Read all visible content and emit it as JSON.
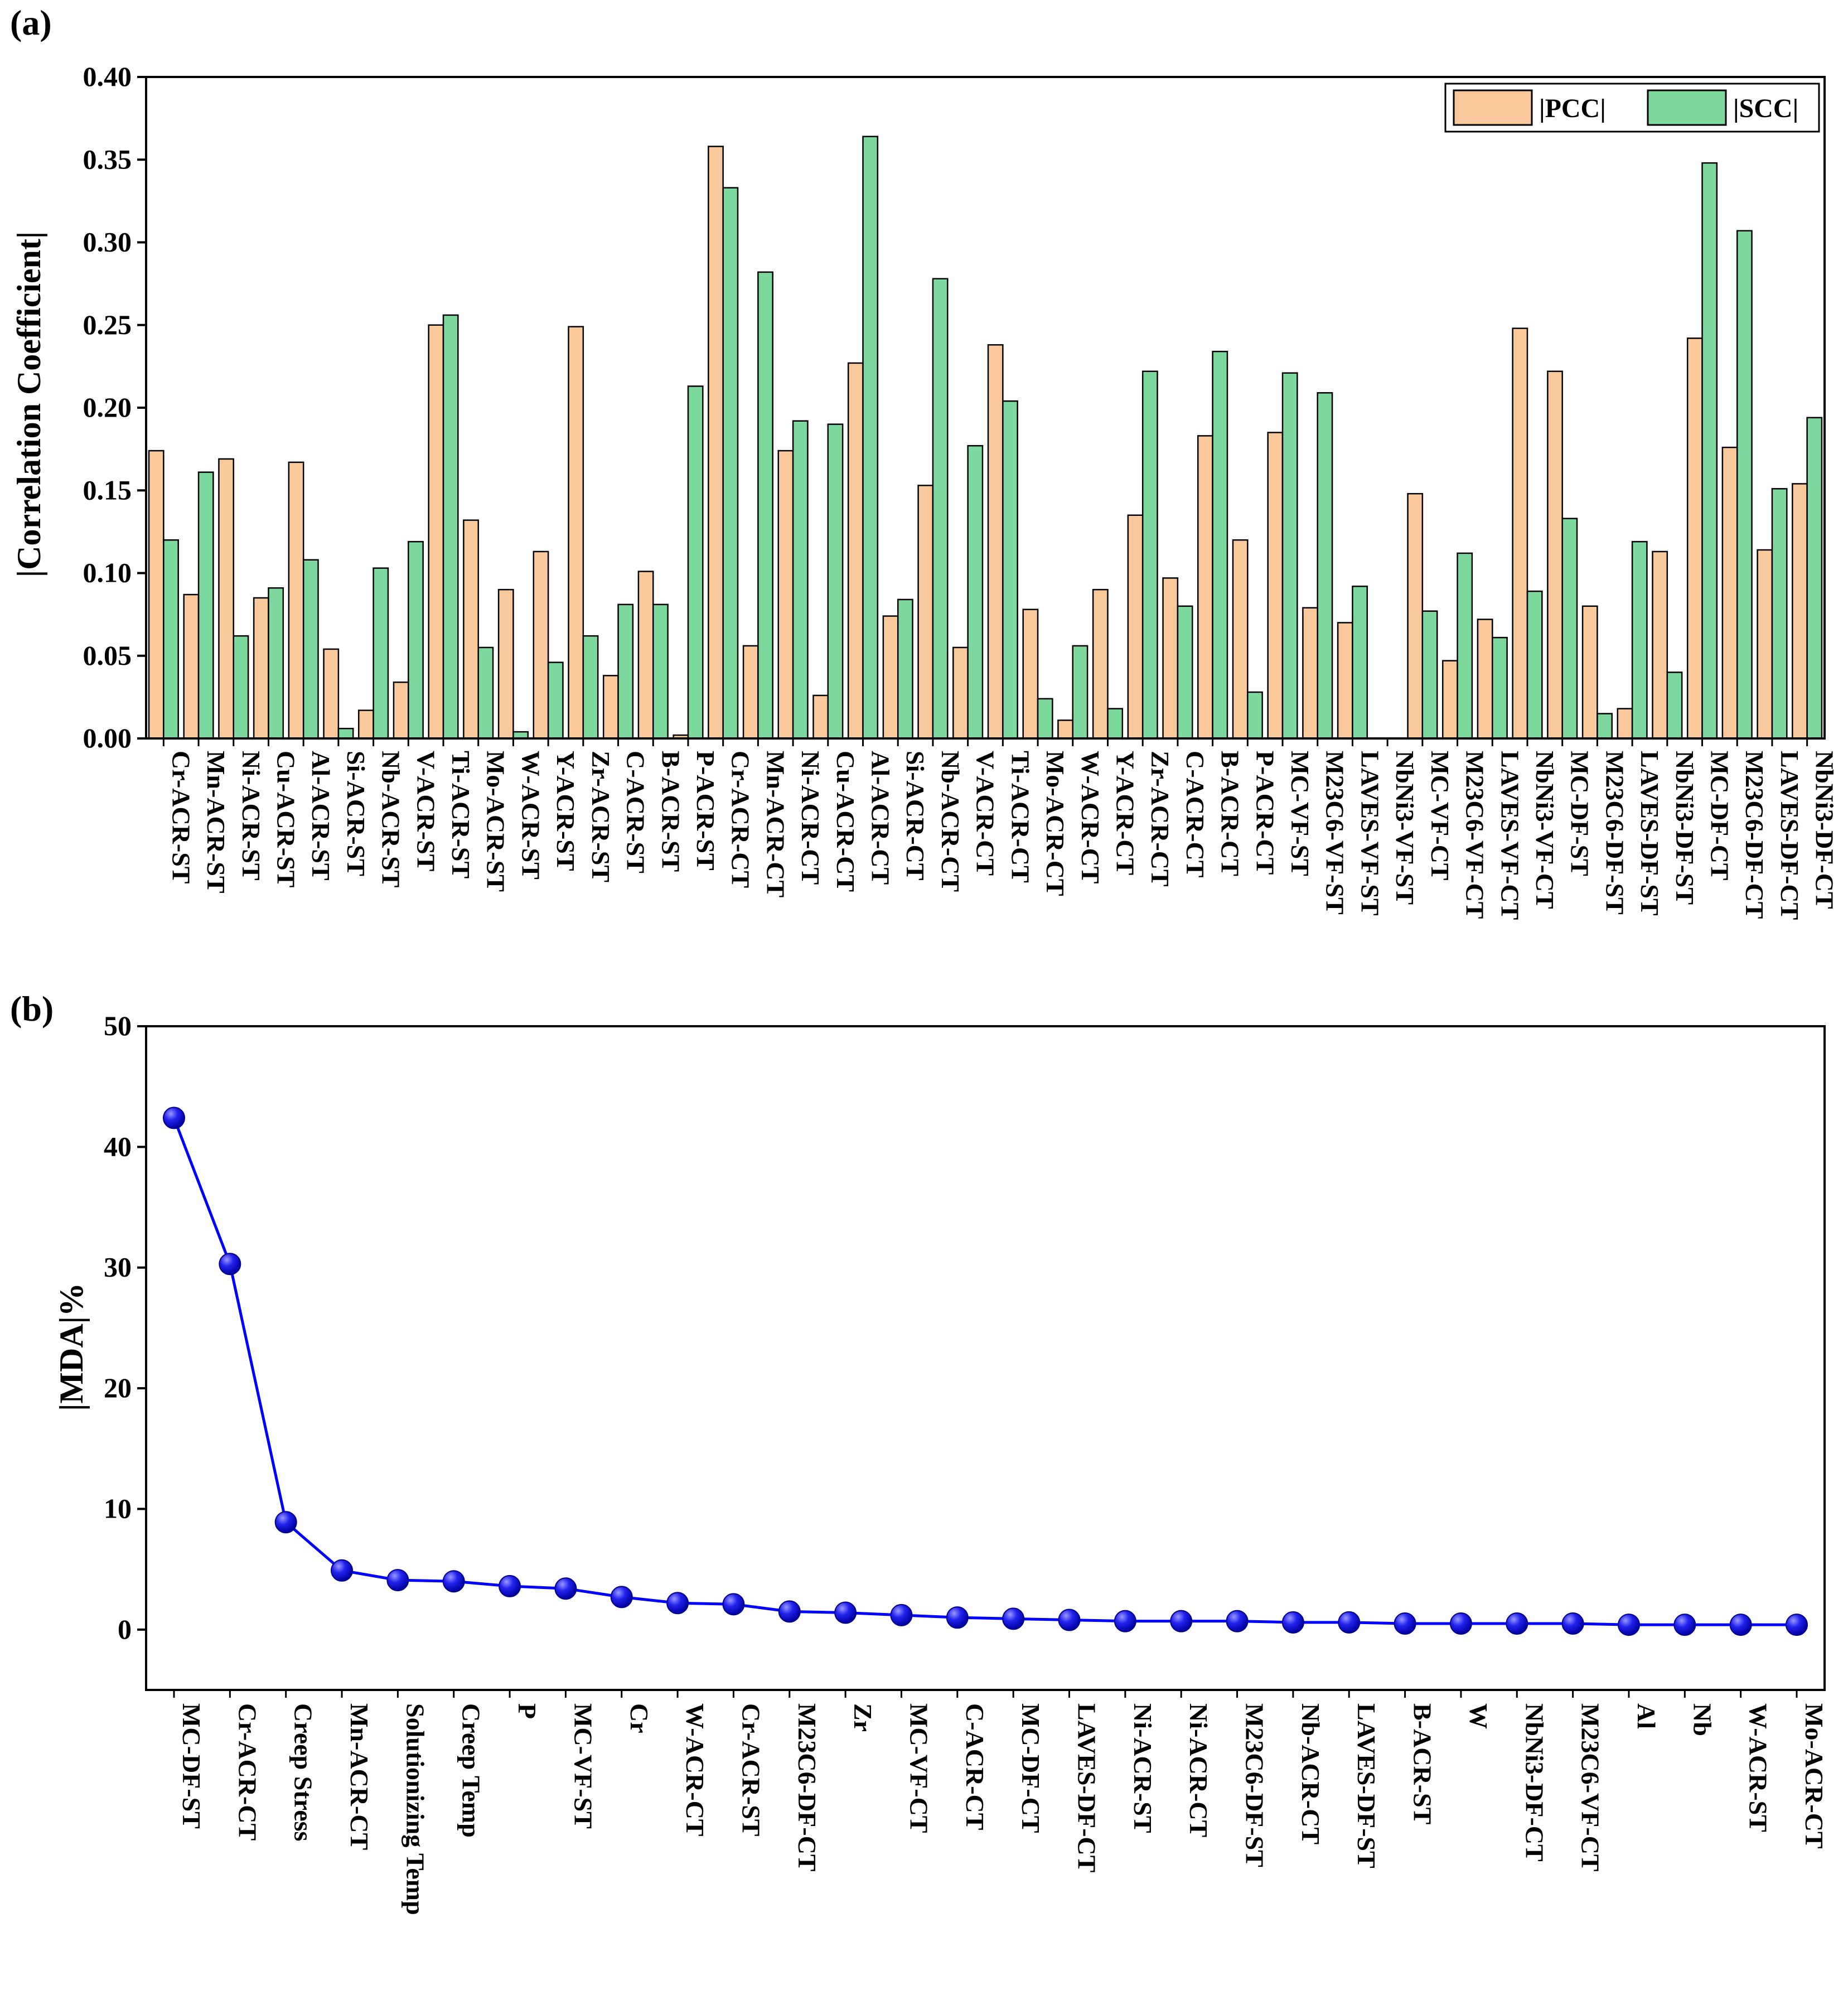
{
  "chart_data": [
    {
      "panel": "(a)",
      "type": "bar",
      "ylabel": "|Correlation Coefficient|",
      "ylim": [
        0,
        0.4
      ],
      "yticks": [
        "0.00",
        "0.05",
        "0.10",
        "0.15",
        "0.20",
        "0.25",
        "0.30",
        "0.35",
        "0.40"
      ],
      "categories": [
        "Cr-ACR-ST",
        "Mn-ACR-ST",
        "Ni-ACR-ST",
        "Cu-ACR-ST",
        "Al-ACR-ST",
        "Si-ACR-ST",
        "Nb-ACR-ST",
        "V-ACR-ST",
        "Ti-ACR-ST",
        "Mo-ACR-ST",
        "W-ACR-ST",
        "Y-ACR-ST",
        "Zr-ACR-ST",
        "C-ACR-ST",
        "B-ACR-ST",
        "P-ACR-ST",
        "Cr-ACR-CT",
        "Mn-ACR-CT",
        "Ni-ACR-CT",
        "Cu-ACR-CT",
        "Al-ACR-CT",
        "Si-ACR-CT",
        "Nb-ACR-CT",
        "V-ACR-CT",
        "Ti-ACR-CT",
        "Mo-ACR-CT",
        "W-ACR-CT",
        "Y-ACR-CT",
        "Zr-ACR-CT",
        "C-ACR-CT",
        "B-ACR-CT",
        "P-ACR-CT",
        "MC-VF-ST",
        "M23C6-VF-ST",
        "LAVES-VF-ST",
        "NbNi3-VF-ST",
        "MC-VF-CT",
        "M23C6-VF-CT",
        "LAVES-VF-CT",
        "NbNi3-VF-CT",
        "MC-DF-ST",
        "M23C6-DF-ST",
        "LAVES-DF-ST",
        "NbNi3-DF-ST",
        "MC-DF-CT",
        "M23C6-DF-CT",
        "LAVES-DF-CT",
        "NbNi3-DF-CT"
      ],
      "series": [
        {
          "name": "|PCC|",
          "color": "#F9C89B",
          "values": [
            0.174,
            0.087,
            0.169,
            0.085,
            0.167,
            0.054,
            0.017,
            0.034,
            0.25,
            0.132,
            0.09,
            0.113,
            0.249,
            0.038,
            0.101,
            0.002,
            0.358,
            0.056,
            0.174,
            0.026,
            0.227,
            0.074,
            0.153,
            0.055,
            0.238,
            0.078,
            0.011,
            0.09,
            0.135,
            0.097,
            0.183,
            0.12,
            0.185,
            0.079,
            0.07,
            0.0,
            0.148,
            0.047,
            0.072,
            0.248,
            0.222,
            0.08,
            0.018,
            0.113,
            0.242,
            0.176,
            0.114,
            0.154
          ]
        },
        {
          "name": "|SCC|",
          "color": "#7DD89D",
          "values": [
            0.12,
            0.161,
            0.062,
            0.091,
            0.108,
            0.006,
            0.103,
            0.119,
            0.256,
            0.055,
            0.004,
            0.046,
            0.062,
            0.081,
            0.081,
            0.213,
            0.333,
            0.282,
            0.192,
            0.19,
            0.364,
            0.084,
            0.278,
            0.177,
            0.204,
            0.024,
            0.056,
            0.018,
            0.222,
            0.08,
            0.234,
            0.028,
            0.221,
            0.209,
            0.092,
            0.0,
            0.077,
            0.112,
            0.061,
            0.089,
            0.133,
            0.015,
            0.119,
            0.04,
            0.348,
            0.307,
            0.151,
            0.194
          ]
        }
      ],
      "legend": "top-right"
    },
    {
      "panel": "(b)",
      "type": "line",
      "ylabel": "|MDA|%",
      "ylim": [
        -5,
        50
      ],
      "yticks": [
        "0",
        "10",
        "20",
        "30",
        "40",
        "50"
      ],
      "line_color": "#0000FF",
      "marker_color": "#1414E6",
      "categories": [
        "MC-DF-ST",
        "Cr-ACR-CT",
        "Creep Stress",
        "Mn-ACR-CT",
        "Solutionizing Temp",
        "Creep Temp",
        "P",
        "MC-VF-ST",
        "Cr",
        "W-ACR-CT",
        "Cr-ACR-ST",
        "M23C6-DF-CT",
        "Zr",
        "MC-VF-CT",
        "C-ACR-CT",
        "MC-DF-CT",
        "LAVES-DF-CT",
        "Ni-ACR-ST",
        "Ni-ACR-CT",
        "M23C6-DF-ST",
        "Nb-ACR-CT",
        "LAVES-DF-ST",
        "B-ACR-ST",
        "W",
        "NbNi3-DF-CT",
        "M23C6-VF-CT",
        "Al",
        "Nb",
        "W-ACR-ST",
        "Mo-ACR-CT"
      ],
      "values": [
        42.4,
        30.3,
        8.9,
        4.9,
        4.1,
        4.0,
        3.6,
        3.4,
        2.7,
        2.2,
        2.1,
        1.5,
        1.4,
        1.2,
        1.0,
        0.9,
        0.8,
        0.7,
        0.7,
        0.7,
        0.6,
        0.6,
        0.5,
        0.5,
        0.5,
        0.5,
        0.4,
        0.4,
        0.4,
        0.4
      ]
    }
  ]
}
